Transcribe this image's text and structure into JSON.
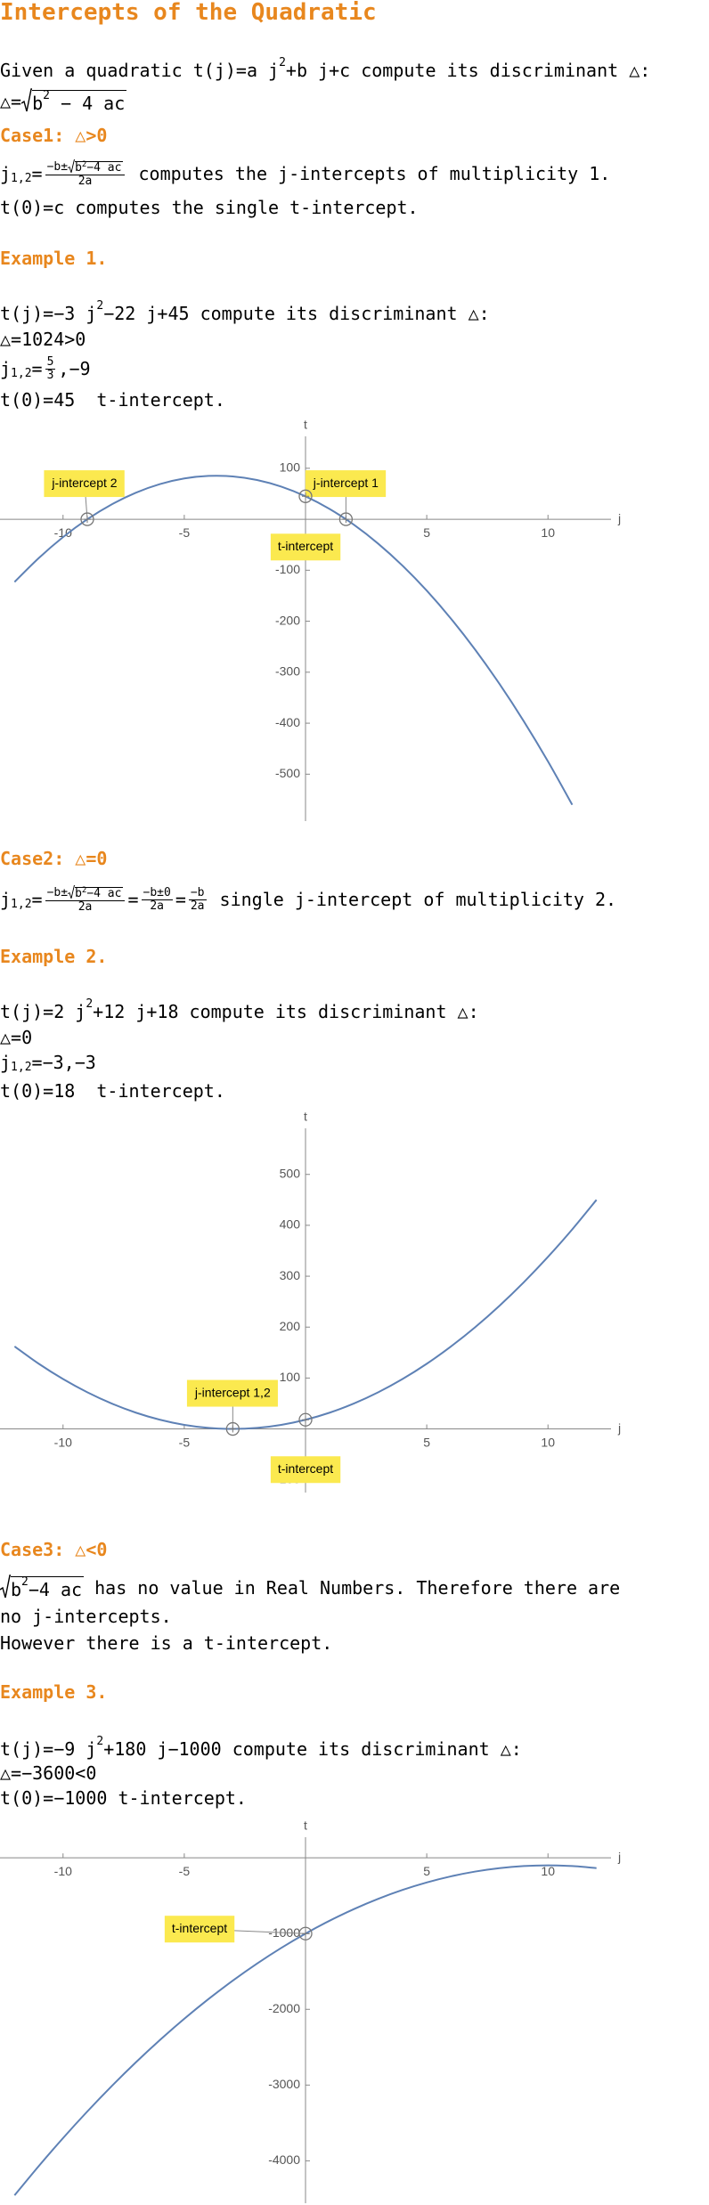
{
  "document": {
    "title": "Intercepts of the Quadratic",
    "intro": [
      [
        "Given a quadratic t(j)=a j",
        {
          "sup": "2"
        },
        "+b j+c compute its discriminant △:"
      ],
      [
        "△=",
        {
          "sqrt": [
            "b",
            {
              "sup": "2"
            },
            " − 4 ac"
          ]
        }
      ]
    ],
    "case1": {
      "heading": "Case1: △>0",
      "lines": [
        [
          "j",
          {
            "sub": "1,2"
          },
          "=",
          {
            "frac": {
              "num": [
                "−b±",
                {
                  "sqrt": [
                    "b",
                    {
                      "sup": "2"
                    },
                    "−4 ac"
                  ]
                }
              ],
              "den": [
                "2a"
              ]
            }
          },
          " computes the j-intercepts of multiplicity 1."
        ],
        [
          "t(0)=c computes the single t-intercept."
        ]
      ]
    },
    "example1": {
      "heading": "Example 1.",
      "lines": [
        [
          "t(j)=−3 j",
          {
            "sup": "2"
          },
          "−22 j+45 compute its discriminant △:"
        ],
        [
          "△=1024>0"
        ],
        [
          "j",
          {
            "sub": "1,2"
          },
          "=",
          {
            "frac": {
              "num": [
                "5"
              ],
              "den": [
                "3"
              ]
            }
          },
          ",−9"
        ],
        [
          "t(0)=45  t-intercept."
        ]
      ]
    },
    "case2": {
      "heading": "Case2: △=0",
      "lines": [
        [
          "j",
          {
            "sub": "1,2"
          },
          "=",
          {
            "frac": {
              "num": [
                "−b±",
                {
                  "sqrt": [
                    "b",
                    {
                      "sup": "2"
                    },
                    "−4 ac"
                  ]
                }
              ],
              "den": [
                "2a"
              ]
            }
          },
          "=",
          {
            "frac": {
              "num": [
                "−b±0"
              ],
              "den": [
                "2a"
              ]
            }
          },
          "=",
          {
            "frac": {
              "num": [
                "−b"
              ],
              "den": [
                "2a"
              ]
            }
          },
          " single j-intercept of multiplicity 2."
        ]
      ]
    },
    "example2": {
      "heading": "Example 2.",
      "lines": [
        [
          "t(j)=2 j",
          {
            "sup": "2"
          },
          "+12 j+18 compute its discriminant △:"
        ],
        [
          "△=0"
        ],
        [
          "j",
          {
            "sub": "1,2"
          },
          "=−3,−3"
        ],
        [
          "t(0)=18  t-intercept."
        ]
      ]
    },
    "case3": {
      "heading": "Case3: △<0",
      "lines": [
        [
          {
            "sqrt": [
              "b",
              {
                "sup": "2"
              },
              "−4 ac"
            ]
          },
          " has no value in Real Numbers. Therefore there are"
        ],
        [
          "no j-intercepts."
        ],
        [
          "However there is a t-intercept."
        ]
      ]
    },
    "example3": {
      "heading": "Example 3.",
      "lines": [
        [
          "t(j)=−9 j",
          {
            "sup": "2"
          },
          "+180 j−1000 compute its discriminant △:"
        ],
        [
          "△=−3600<0"
        ],
        [
          "t(0)=−1000 t-intercept."
        ]
      ]
    }
  },
  "chart_data": [
    {
      "type": "line",
      "x_label": "j",
      "y_label": "t",
      "xlim": [
        -12.6,
        12.6
      ],
      "ylim": [
        -592,
        194
      ],
      "xticks": [
        -10,
        -5,
        5,
        10
      ],
      "yticks": [
        -500,
        -400,
        -300,
        -200,
        -100,
        100
      ],
      "series": [
        {
          "color": "#5e81b5",
          "x": [
            -12,
            -11,
            -10,
            -9,
            -8,
            -7,
            -6,
            -5,
            -4,
            -3,
            -2,
            -1,
            0,
            1,
            2,
            3,
            4,
            5,
            6,
            7,
            8,
            9,
            10,
            11
          ],
          "values": [
            -123,
            -76,
            -35,
            0,
            29,
            52,
            69,
            80,
            85,
            84,
            77,
            64,
            45,
            20,
            -11,
            -48,
            -91,
            -140,
            -195,
            -256,
            -323,
            -396,
            -475,
            -560
          ]
        }
      ],
      "annotations": [
        {
          "text": "j-intercept 2",
          "x": -9,
          "y": 0
        },
        {
          "text": "j-intercept 1",
          "x": 1.667,
          "y": 0
        },
        {
          "text": "t-intercept",
          "x": 0,
          "y": 45
        }
      ]
    },
    {
      "type": "line",
      "x_label": "j",
      "y_label": "t",
      "xlim": [
        -12.6,
        12.6
      ],
      "ylim": [
        -125,
        622
      ],
      "xticks": [
        -10,
        -5,
        5,
        10
      ],
      "yticks": [
        -100,
        100,
        200,
        300,
        400,
        500
      ],
      "series": [
        {
          "color": "#5e81b5",
          "x": [
            -12,
            -11,
            -10,
            -9,
            -8,
            -7,
            -6,
            -5,
            -4,
            -3,
            -2,
            -1,
            0,
            1,
            2,
            3,
            4,
            5,
            6,
            7,
            8,
            9,
            10,
            11,
            12
          ],
          "values": [
            162,
            128,
            98,
            72,
            50,
            32,
            18,
            8,
            2,
            0,
            2,
            8,
            18,
            32,
            50,
            72,
            98,
            128,
            162,
            200,
            242,
            288,
            338,
            392,
            450
          ]
        }
      ],
      "annotations": [
        {
          "text": "j-intercept 1,2",
          "x": -3,
          "y": 0
        },
        {
          "text": "t-intercept",
          "x": 0,
          "y": 18
        }
      ]
    },
    {
      "type": "line",
      "x_label": "j",
      "y_label": "t",
      "xlim": [
        -12.6,
        12.6
      ],
      "ylim": [
        -4560,
        484
      ],
      "xticks": [
        -10,
        -5,
        5,
        10
      ],
      "yticks": [
        -4000,
        -3000,
        -2000,
        -1000
      ],
      "series": [
        {
          "color": "#5e81b5",
          "x": [
            -12,
            -11,
            -10,
            -9,
            -8,
            -7,
            -6,
            -5,
            -4,
            -3,
            -2,
            -1,
            0,
            1,
            2,
            3,
            4,
            5,
            6,
            7,
            8,
            9,
            10,
            11,
            12
          ],
          "values": [
            -4456,
            -4069,
            -3700,
            -3349,
            -3016,
            -2701,
            -2404,
            -2125,
            -1864,
            -1621,
            -1396,
            -1189,
            -1000,
            -829,
            -676,
            -541,
            -424,
            -325,
            -244,
            -181,
            -136,
            -109,
            -100,
            -109,
            -136
          ]
        }
      ],
      "annotations": [
        {
          "text": "t-intercept",
          "x": 0,
          "y": -1000
        }
      ]
    }
  ]
}
